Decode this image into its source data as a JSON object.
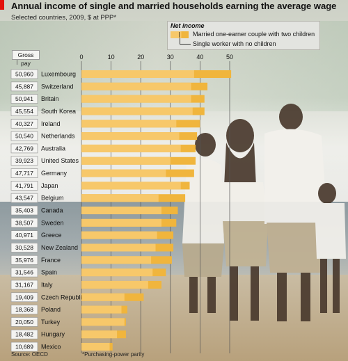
{
  "header": {
    "title": "Annual income of single and married households earning the average wage",
    "subtitle": "Selected countries, 2009, $ at PPP*"
  },
  "legend": {
    "title": "Net income",
    "married_label": "Married one-earner couple with two children",
    "single_label": "Single worker with no children"
  },
  "gross_header": "Gross pay",
  "footer": {
    "source": "Source: OECD",
    "note": "*Purchasing-power parity"
  },
  "colors": {
    "married": "#f0b53d",
    "single": "#f7c86a",
    "accent": "#e3120b"
  },
  "chart_data": {
    "type": "bar",
    "xlim": [
      0,
      50
    ],
    "xticks": [
      0,
      10,
      20,
      30,
      40,
      50
    ],
    "unit": "$'000",
    "categories": [
      "Luxembourg",
      "Switzerland",
      "Britain",
      "South Korea",
      "Ireland",
      "Netherlands",
      "Australia",
      "United States",
      "Germany",
      "Japan",
      "Belgium",
      "Canada",
      "Sweden",
      "Greece",
      "New Zealand",
      "France",
      "Spain",
      "Italy",
      "Czech Republic",
      "Poland",
      "Turkey",
      "Hungary",
      "Mexico"
    ],
    "gross_pay": [
      "50,960",
      "45,887",
      "50,941",
      "45,554",
      "40,327",
      "50,540",
      "42,769",
      "39,923",
      "47,717",
      "41,791",
      "43,547",
      "35,403",
      "38,507",
      "40,971",
      "30,528",
      "35,976",
      "31,546",
      "31,167",
      "19,409",
      "18,368",
      "20,050",
      "18,482",
      "10,689"
    ],
    "series": [
      {
        "name": "Married one-earner couple with two children",
        "values": [
          50.5,
          42.5,
          41.5,
          41.5,
          40.0,
          39.0,
          38.5,
          38.5,
          38.0,
          36.5,
          35.0,
          32.5,
          32.0,
          31.0,
          31.0,
          30.5,
          28.5,
          27.0,
          21.0,
          15.5,
          15.0,
          15.0,
          10.5
        ]
      },
      {
        "name": "Single worker with no children",
        "values": [
          38.0,
          37.0,
          37.0,
          37.5,
          32.0,
          33.0,
          33.5,
          30.0,
          28.5,
          33.5,
          26.0,
          27.0,
          27.0,
          25.5,
          25.0,
          23.5,
          24.0,
          22.5,
          14.5,
          13.5,
          14.5,
          12.0,
          9.5
        ]
      }
    ]
  }
}
